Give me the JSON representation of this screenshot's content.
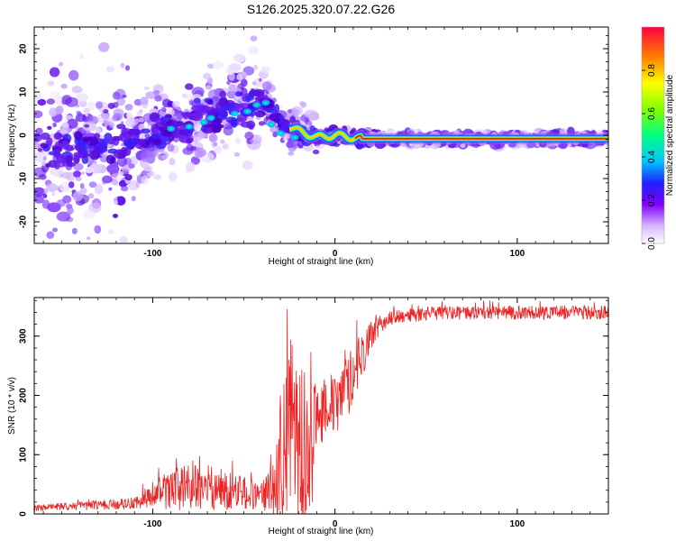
{
  "title": "S126.2025.320.07.22.G26",
  "chart_data": [
    {
      "type": "heatmap",
      "name": "spectrogram",
      "xlabel": "Height of straight line (km)",
      "ylabel": "Frequency (Hz)",
      "xlim": [
        -165,
        150
      ],
      "ylim": [
        -25,
        25
      ],
      "xticks": [
        -100,
        0,
        100
      ],
      "yticks": [
        -20,
        -10,
        0,
        10,
        20
      ],
      "colorbar": {
        "label": "Normalized spectral amplitude",
        "ticks": [
          0.0,
          0.2,
          0.4,
          0.6,
          0.8
        ],
        "range": [
          0,
          1
        ]
      },
      "ridge": {
        "description_points_x": [
          -165,
          -140,
          -120,
          -100,
          -80,
          -60,
          -45,
          -38,
          -30,
          -20,
          -10,
          0,
          15,
          150
        ],
        "description_points_y": [
          -5,
          -3,
          -2,
          0,
          3,
          6,
          8,
          8,
          3,
          1,
          -0.5,
          0,
          -0.8,
          -0.8
        ]
      }
    },
    {
      "type": "line",
      "name": "snr",
      "xlabel": "Height of straight line (km)",
      "ylabel": "SNR (10 * v/v)",
      "xlim": [
        -165,
        150
      ],
      "ylim": [
        0,
        365
      ],
      "xticks": [
        -100,
        0,
        100
      ],
      "yticks": [
        0,
        100,
        200,
        300
      ],
      "color": "#ee2222",
      "envelope_x": [
        -165,
        -110,
        -100,
        -90,
        -80,
        -70,
        -60,
        -50,
        -40,
        -35,
        -30,
        -25,
        -20,
        -15,
        -10,
        -5,
        0,
        5,
        10,
        15,
        20,
        25,
        30,
        40,
        60,
        80,
        100,
        120,
        150
      ],
      "envelope_mean": [
        10,
        18,
        30,
        40,
        45,
        45,
        40,
        35,
        30,
        40,
        100,
        150,
        120,
        80,
        160,
        190,
        180,
        200,
        240,
        270,
        300,
        320,
        330,
        335,
        340,
        340,
        340,
        340,
        340
      ],
      "envelope_amp": [
        5,
        10,
        25,
        35,
        40,
        40,
        35,
        30,
        25,
        40,
        120,
        150,
        160,
        140,
        60,
        60,
        50,
        60,
        50,
        40,
        25,
        15,
        12,
        12,
        12,
        12,
        12,
        12,
        12
      ]
    }
  ]
}
